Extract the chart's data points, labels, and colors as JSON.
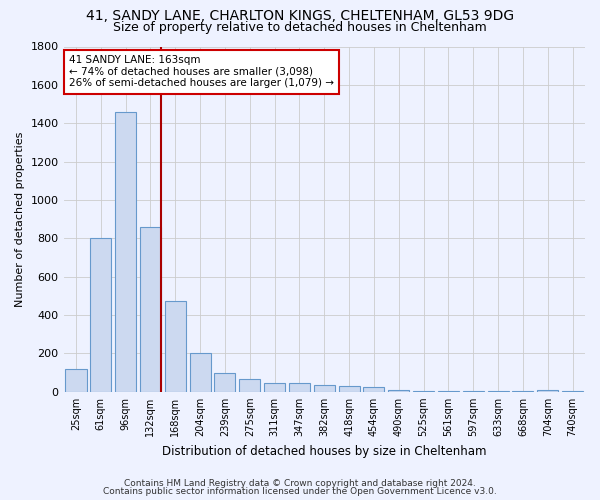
{
  "title_line1": "41, SANDY LANE, CHARLTON KINGS, CHELTENHAM, GL53 9DG",
  "title_line2": "Size of property relative to detached houses in Cheltenham",
  "xlabel": "Distribution of detached houses by size in Cheltenham",
  "ylabel": "Number of detached properties",
  "footer_line1": "Contains HM Land Registry data © Crown copyright and database right 2024.",
  "footer_line2": "Contains public sector information licensed under the Open Government Licence v3.0.",
  "categories": [
    "25sqm",
    "61sqm",
    "96sqm",
    "132sqm",
    "168sqm",
    "204sqm",
    "239sqm",
    "275sqm",
    "311sqm",
    "347sqm",
    "382sqm",
    "418sqm",
    "454sqm",
    "490sqm",
    "525sqm",
    "561sqm",
    "597sqm",
    "633sqm",
    "668sqm",
    "704sqm",
    "740sqm"
  ],
  "values": [
    120,
    800,
    1460,
    860,
    475,
    200,
    100,
    65,
    45,
    45,
    35,
    30,
    25,
    10,
    2,
    2,
    2,
    2,
    2,
    10,
    2
  ],
  "bar_color": "#ccd9f0",
  "bar_edge_color": "#6699cc",
  "grid_color": "#cccccc",
  "background_color": "#eef2ff",
  "vline_color": "#aa0000",
  "annotation_text": "41 SANDY LANE: 163sqm\n← 74% of detached houses are smaller (3,098)\n26% of semi-detached houses are larger (1,079) →",
  "annotation_box_color": "#ffffff",
  "annotation_box_edge": "#cc0000",
  "ylim": [
    0,
    1800
  ],
  "yticks": [
    0,
    200,
    400,
    600,
    800,
    1000,
    1200,
    1400,
    1600,
    1800
  ],
  "vline_pos": 3.43
}
